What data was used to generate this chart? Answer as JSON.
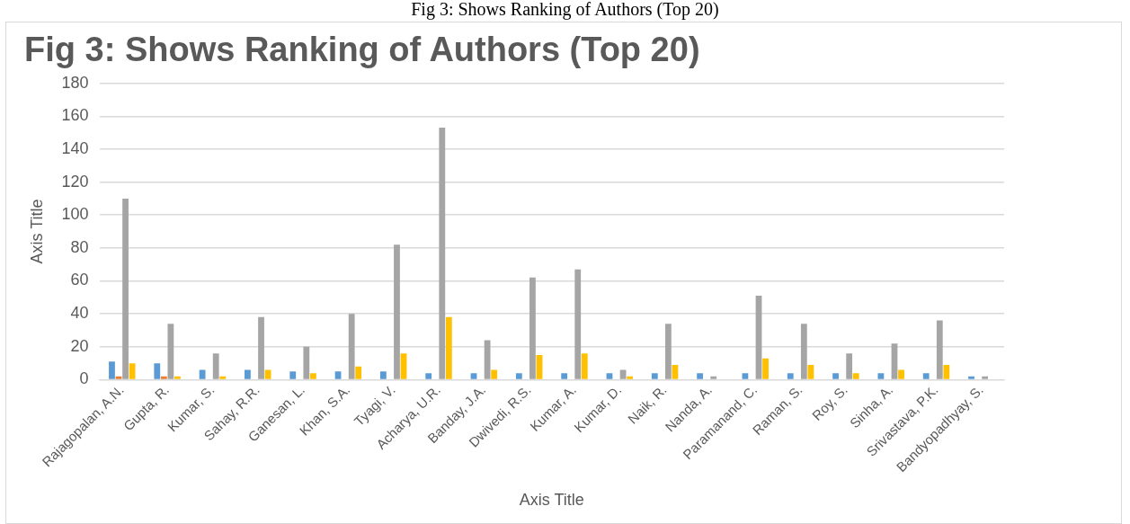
{
  "chart_data": {
    "type": "bar",
    "title": "Fig 3: Shows Ranking of Authors (Top 20)",
    "annotations": [
      "Fig 3: Shows Ranking of Authors (Top 20)"
    ],
    "xlabel": "Axis Title",
    "ylabel": "Axis Title",
    "categories": [
      "Rajagopalan, A.N.",
      "Gupta, R.",
      "Kumar, S.",
      "Sahay, R.R.",
      "Ganesan, L.",
      "Khan, S.A.",
      "Tyagi, V.",
      "Acharya, U.R.",
      "Banday, J.A.",
      "Dwivedi, R.S.",
      "Kumar, A.",
      "Kumar, D.",
      "Naik, R.",
      "Nanda, A.",
      "Paramanand, C.",
      "Raman, S.",
      "Roy, S.",
      "Sinha, A.",
      "Srivastava, P.K.",
      "Bandyopadhyay, S."
    ],
    "series": [
      {
        "color": "#5b9bd5",
        "values": [
          11,
          10,
          6,
          6,
          5,
          5,
          5,
          4,
          4,
          4,
          4,
          4,
          4,
          4,
          4,
          4,
          4,
          4,
          4,
          2
        ]
      },
      {
        "color": "#ed7d31",
        "values": [
          2,
          2,
          null,
          null,
          null,
          null,
          null,
          null,
          null,
          null,
          null,
          null,
          null,
          null,
          null,
          null,
          null,
          null,
          null,
          null
        ]
      },
      {
        "color": "#a5a5a5",
        "values": [
          110,
          34,
          16,
          38,
          20,
          40,
          82,
          153,
          24,
          62,
          67,
          6,
          34,
          2,
          51,
          34,
          16,
          22,
          36,
          2
        ]
      },
      {
        "color": "#ffc000",
        "values": [
          10,
          2,
          2,
          6,
          4,
          8,
          16,
          38,
          6,
          15,
          16,
          2,
          9,
          null,
          13,
          9,
          4,
          6,
          9,
          null
        ]
      }
    ],
    "ylim": [
      0,
      180
    ],
    "yticks": [
      0,
      20,
      40,
      60,
      80,
      100,
      120,
      140,
      160,
      180
    ],
    "grid": "y",
    "legend": false
  }
}
